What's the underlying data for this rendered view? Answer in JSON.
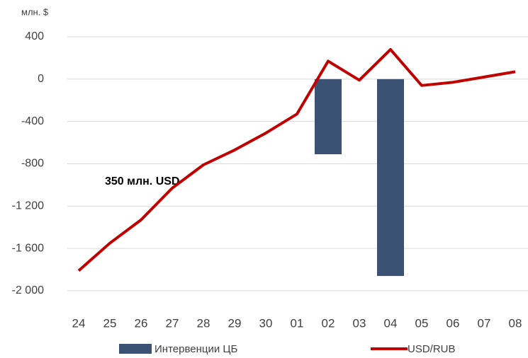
{
  "chart_data": {
    "type": "bar-line",
    "y_axis_label": "млн. $",
    "annotation": "350 млн. USD",
    "categories": [
      "24",
      "25",
      "26",
      "27",
      "28",
      "29",
      "30",
      "01",
      "02",
      "03",
      "04",
      "05",
      "06",
      "07",
      "08"
    ],
    "series": [
      {
        "name": "Интервенции ЦБ",
        "type": "bar",
        "color": "#3b5275",
        "values": [
          null,
          null,
          null,
          null,
          null,
          null,
          null,
          null,
          -710,
          null,
          -1860,
          null,
          null,
          null,
          null
        ]
      },
      {
        "name": "USD/RUB",
        "type": "line",
        "color": "#c00000",
        "values": [
          -1810,
          -1550,
          -1330,
          -1030,
          -810,
          -670,
          -510,
          -330,
          170,
          -10,
          280,
          -60,
          -30,
          20,
          70
        ]
      }
    ],
    "ylim": [
      -2000,
      400
    ],
    "yticks": [
      400,
      0,
      -400,
      -800,
      {
        "value": -1200,
        "label": "-1 200"
      },
      {
        "value": -1600,
        "label": "-1 600"
      },
      {
        "value": -2000,
        "label": "-2 000"
      }
    ],
    "grid": true
  }
}
